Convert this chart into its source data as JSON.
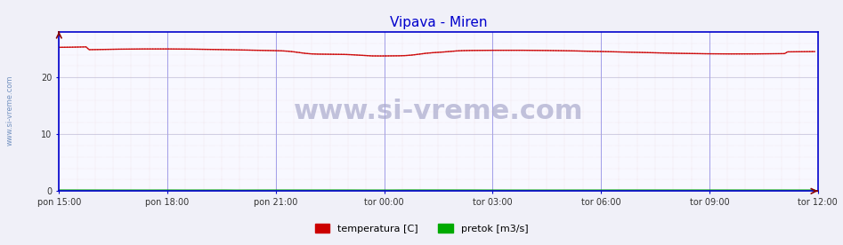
{
  "title": "Vipava - Miren",
  "title_color": "#0000cc",
  "bg_color": "#f0f0f8",
  "plot_bg_color": "#f8f8ff",
  "xlabel_ticks": [
    "pon 15:00",
    "pon 18:00",
    "pon 21:00",
    "tor 00:00",
    "tor 03:00",
    "tor 06:00",
    "tor 09:00",
    "tor 12:00"
  ],
  "yticks": [
    0,
    10,
    20
  ],
  "ylim": [
    0,
    28
  ],
  "xlim": [
    0,
    252
  ],
  "temp_base": 24.5,
  "temp_amplitude": 0.8,
  "pretok_base": 0.15,
  "temp_color": "#cc0000",
  "temp_dotted_color": "#cc0000",
  "pretok_color": "#00aa00",
  "axis_color": "#0000cc",
  "grid_color_major": "#aaaacc",
  "grid_color_minor": "#ddaaaa",
  "watermark": "www.si-vreme.com",
  "watermark_color": "#aaaacc",
  "sidebar_text": "www.si-vreme.com",
  "sidebar_color": "#6688bb",
  "legend_temp_label": "temperatura [C]",
  "legend_pretok_label": "pretok [m3/s]",
  "n_points": 252,
  "tick_positions": [
    0,
    36,
    72,
    108,
    144,
    180,
    216,
    252
  ]
}
